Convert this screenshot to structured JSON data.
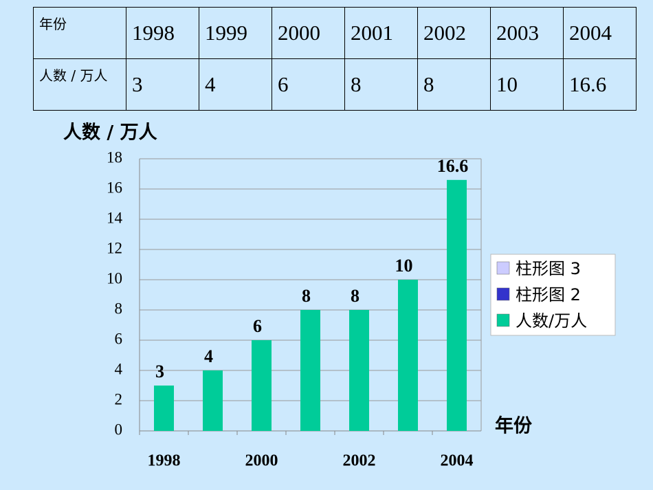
{
  "table": {
    "rows": [
      [
        "年份",
        "1998",
        "1999",
        "2000",
        "2001",
        "2002",
        "2003",
        "2004"
      ],
      [
        "人数 / 万人",
        "3",
        "4",
        "6",
        "8",
        "8",
        "10",
        "16.6"
      ]
    ]
  },
  "chart_data": {
    "type": "bar",
    "y_label": "人数 / 万人",
    "x_label": "年份",
    "categories": [
      "1998",
      null,
      "2000",
      null,
      "2002",
      null,
      "2004"
    ],
    "series": [
      {
        "name": "柱形图 3",
        "color": "#ccccff",
        "values": [
          null,
          null,
          null,
          null,
          null,
          null,
          null
        ]
      },
      {
        "name": "柱形图 2",
        "color": "#3333cc",
        "values": [
          null,
          null,
          null,
          null,
          null,
          null,
          null
        ]
      },
      {
        "name": "人数/万人",
        "color": "#00cc99",
        "values": [
          3,
          4,
          6,
          8,
          8,
          10,
          16.6
        ]
      }
    ],
    "ylim": [
      0,
      18
    ],
    "yticks": [
      0,
      2,
      4,
      6,
      8,
      10,
      12,
      14,
      16,
      18
    ],
    "grid": true
  }
}
